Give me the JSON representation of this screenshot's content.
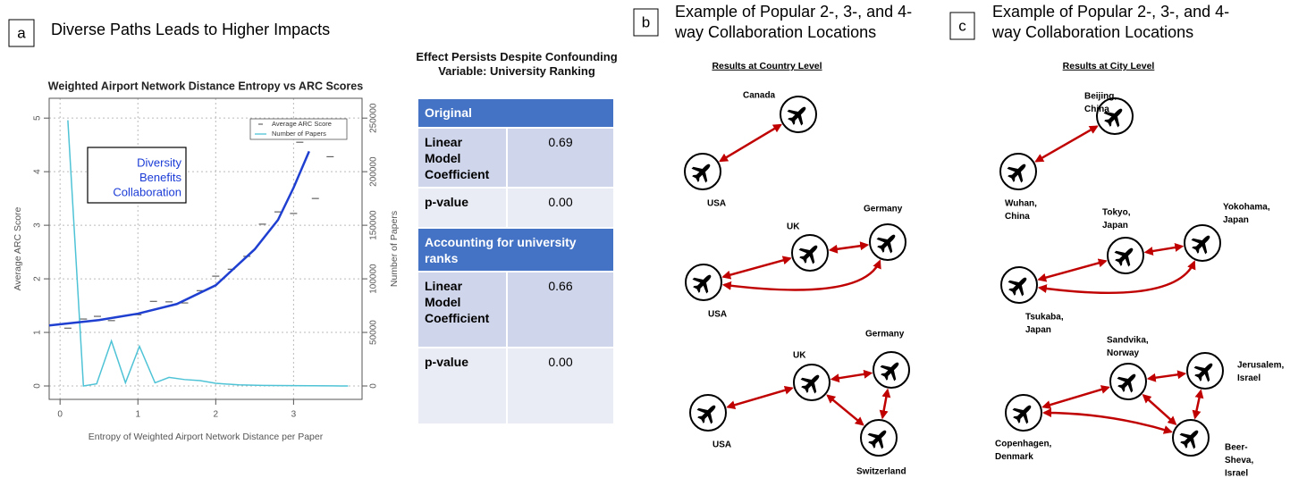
{
  "panel_a": {
    "label": "a",
    "title": "Diverse Paths Leads to Higher Impacts"
  },
  "chart_data": {
    "type": "line",
    "title": "Weighted Airport Network Distance Entropy vs ARC Scores",
    "xlabel": "Entropy of Weighted Airport Network Distance per Paper",
    "ylabel": "Average ARC Score",
    "y2label": "Number of Papers",
    "annotation": [
      "Diversity",
      "Benefits",
      "Collaboration"
    ],
    "annotation_color": "#1a3bd6",
    "xlim": [
      -0.14,
      3.88
    ],
    "xticks": [
      0,
      1,
      2,
      3
    ],
    "ylim": [
      -0.25,
      5.37
    ],
    "yticks": [
      0,
      1,
      2,
      3,
      4,
      5
    ],
    "y2lim": [
      -12500,
      268500
    ],
    "y2ticks": [
      0,
      50000,
      100000,
      150000,
      200000,
      250000
    ],
    "grid": true,
    "legend": "upper right",
    "series": [
      {
        "name": "Average ARC Score",
        "color": "#444444",
        "marker": "dash",
        "x": [
          0.1,
          0.3,
          0.48,
          0.66,
          1.0,
          1.2,
          1.4,
          1.6,
          1.8,
          2.0,
          2.2,
          2.4,
          2.6,
          2.8,
          3.0,
          3.08,
          3.28,
          3.47
        ],
        "values": [
          1.08,
          1.25,
          1.3,
          1.22,
          1.33,
          1.58,
          1.57,
          1.55,
          1.78,
          2.05,
          2.18,
          2.42,
          3.02,
          3.25,
          3.22,
          4.55,
          3.5,
          4.28
        ]
      },
      {
        "name": "Number of Papers",
        "color": "#4fc3d6",
        "marker": "line",
        "axis": "y2",
        "x": [
          0.1,
          0.3,
          0.47,
          0.66,
          0.84,
          1.02,
          1.22,
          1.4,
          1.6,
          1.8,
          2.0,
          2.3,
          2.6,
          3.0,
          3.5,
          3.7
        ],
        "values": [
          248000,
          0,
          2000,
          42000,
          3000,
          37000,
          3000,
          8000,
          6000,
          5000,
          2500,
          1000,
          500,
          300,
          100,
          0
        ]
      }
    ],
    "trend": {
      "color": "#1f3fd1",
      "x": [
        -0.14,
        0.5,
        1.0,
        1.5,
        2.0,
        2.5,
        2.8,
        3.0,
        3.2
      ],
      "values": [
        1.13,
        1.23,
        1.35,
        1.53,
        1.88,
        2.55,
        3.1,
        3.7,
        4.38
      ]
    }
  },
  "table": {
    "title": "Effect Persists Despite Confounding Variable: University Ranking",
    "sections": [
      {
        "header": "Original",
        "rows": [
          [
            "Linear Model Coefficient",
            "0.69"
          ],
          [
            "p-value",
            "0.00"
          ]
        ]
      },
      {
        "header": "Accounting for university ranks",
        "rows": [
          [
            "Linear Model Coefficient",
            "0.66"
          ],
          [
            "p-value",
            "0.00"
          ]
        ]
      }
    ]
  },
  "panel_b": {
    "label": "b",
    "title": [
      "Example of Popular 2-, 3-, and 4-",
      "way Collaboration Locations"
    ],
    "subtitle": "Results at Country Level",
    "groups": [
      {
        "nodes": [
          [
            "Canada"
          ],
          [
            "USA"
          ]
        ]
      },
      {
        "nodes": [
          [
            "UK"
          ],
          [
            "Germany"
          ],
          [
            "USA"
          ]
        ]
      },
      {
        "nodes": [
          [
            "UK"
          ],
          [
            "Germany"
          ],
          [
            "USA"
          ],
          [
            "Switzerland"
          ]
        ]
      }
    ]
  },
  "panel_c": {
    "label": "c",
    "title": [
      "Example of Popular 2-, 3-, and 4-",
      "way Collaboration Locations"
    ],
    "subtitle": "Results at City Level",
    "groups": [
      {
        "nodes": [
          [
            "Beijing,",
            "China"
          ],
          [
            "Wuhan,",
            "China"
          ]
        ]
      },
      {
        "nodes": [
          [
            "Tokyo,",
            "Japan"
          ],
          [
            "Yokohama,",
            "Japan"
          ],
          [
            "Tsukaba,",
            "Japan"
          ]
        ]
      },
      {
        "nodes": [
          [
            "Sandvika,",
            "Norway"
          ],
          [
            "Jerusalem,",
            "Israel"
          ],
          [
            "Copenhagen,",
            "Denmark"
          ],
          [
            "Beer-",
            "Sheva,",
            "Israel"
          ]
        ]
      }
    ]
  }
}
